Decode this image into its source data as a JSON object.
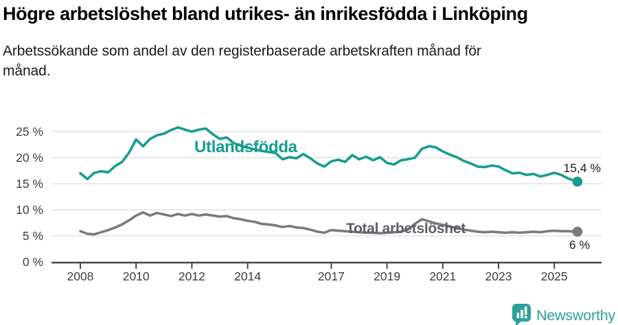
{
  "title": "Högre arbetslöshet bland utrikes- än inrikesfödda i Linköping",
  "subtitle": {
    "lines": [
      "Arbetssökande som andel av den registerbaserade arbetskraften månad för",
      "månad."
    ]
  },
  "branding": {
    "name": "Newsworthy",
    "icon": "newsworthy-speech-bubble-bar-chart-icon",
    "color": "#2aa396"
  },
  "colors": {
    "axis": "#454545",
    "grid": "#d9d9d9",
    "tick_label": "#3d3d3d",
    "annotation": "#222222",
    "background": "#ffffff"
  },
  "chart_data": {
    "type": "line",
    "title": "Högre arbetslöshet bland utrikes- än inrikesfödda i Linköping",
    "xlabel": "",
    "ylabel": "Arbetssökande som andel av den registerbaserade arbetskraften",
    "x_unit": "decimal year (monthly data 2008 – late 2025)",
    "xlim": [
      2008,
      2025.95
    ],
    "ylim": [
      0,
      27
    ],
    "grid": "horizontal",
    "legend_position": "inline-labels-on-lines",
    "yticks": {
      "values": [
        0,
        5,
        10,
        15,
        20,
        25
      ],
      "labels": [
        "0 %",
        "5 %",
        "10 %",
        "15 %",
        "20 %",
        "25 %"
      ]
    },
    "xticks": {
      "values": [
        2008,
        2010,
        2012,
        2014,
        2017,
        2019,
        2021,
        2023,
        2025
      ],
      "labels": [
        "2008",
        "2010",
        "2012",
        "2014",
        "2017",
        "2019",
        "2021",
        "2023",
        "2025"
      ]
    },
    "x": [
      2008.0,
      2008.25,
      2008.5,
      2008.75,
      2009.0,
      2009.25,
      2009.5,
      2009.75,
      2010.0,
      2010.25,
      2010.5,
      2010.75,
      2011.0,
      2011.25,
      2011.5,
      2011.75,
      2012.0,
      2012.25,
      2012.5,
      2012.75,
      2013.0,
      2013.25,
      2013.5,
      2013.75,
      2014.0,
      2014.25,
      2014.5,
      2014.75,
      2015.0,
      2015.25,
      2015.5,
      2015.75,
      2016.0,
      2016.25,
      2016.5,
      2016.75,
      2017.0,
      2017.25,
      2017.5,
      2017.75,
      2018.0,
      2018.25,
      2018.5,
      2018.75,
      2019.0,
      2019.25,
      2019.5,
      2019.75,
      2020.0,
      2020.25,
      2020.5,
      2020.75,
      2021.0,
      2021.25,
      2021.5,
      2021.75,
      2022.0,
      2022.25,
      2022.5,
      2022.75,
      2023.0,
      2023.25,
      2023.5,
      2023.75,
      2024.0,
      2024.25,
      2024.5,
      2024.75,
      2025.0,
      2025.25,
      2025.5,
      2025.83
    ],
    "series": [
      {
        "name": "Utlandsfödda",
        "color": "#169d8f",
        "end_label": "15,4 %",
        "end_value": 15.4,
        "values": [
          17.0,
          15.9,
          17.1,
          17.4,
          17.2,
          18.4,
          19.2,
          21.0,
          23.5,
          22.2,
          23.6,
          24.3,
          24.6,
          25.3,
          25.8,
          25.4,
          25.0,
          25.4,
          25.6,
          24.5,
          23.6,
          23.9,
          22.8,
          22.3,
          21.9,
          21.6,
          21.3,
          21.1,
          20.9,
          19.7,
          20.1,
          19.9,
          20.7,
          19.9,
          18.9,
          18.3,
          19.3,
          19.6,
          19.2,
          20.5,
          19.7,
          20.2,
          19.5,
          20.1,
          19.0,
          18.7,
          19.5,
          19.7,
          20.0,
          21.7,
          22.2,
          22.0,
          21.2,
          20.6,
          20.1,
          19.4,
          18.9,
          18.3,
          18.2,
          18.5,
          18.3,
          17.6,
          17.0,
          17.1,
          16.7,
          16.9,
          16.4,
          16.7,
          17.1,
          16.7,
          16.0,
          15.4
        ]
      },
      {
        "name": "Total arbetslöshet",
        "color": "#7a7a80",
        "label_color": "#5f5f66",
        "end_label": "6 %",
        "end_value": 5.8,
        "values": [
          5.9,
          5.4,
          5.3,
          5.7,
          6.1,
          6.6,
          7.2,
          8.0,
          8.9,
          9.5,
          8.9,
          9.4,
          9.1,
          8.8,
          9.2,
          8.9,
          9.2,
          8.9,
          9.1,
          8.9,
          8.7,
          8.8,
          8.4,
          8.2,
          7.9,
          7.7,
          7.3,
          7.2,
          7.0,
          6.7,
          6.9,
          6.6,
          6.5,
          6.2,
          5.8,
          5.6,
          6.1,
          6.0,
          5.9,
          5.8,
          5.7,
          5.6,
          5.6,
          5.5,
          5.6,
          5.7,
          5.8,
          6.2,
          7.3,
          8.2,
          7.8,
          7.4,
          7.1,
          6.8,
          6.5,
          6.2,
          6.0,
          5.8,
          5.7,
          5.8,
          5.7,
          5.6,
          5.7,
          5.6,
          5.7,
          5.8,
          5.7,
          5.9,
          6.0,
          5.9,
          5.9,
          5.8
        ]
      }
    ]
  }
}
